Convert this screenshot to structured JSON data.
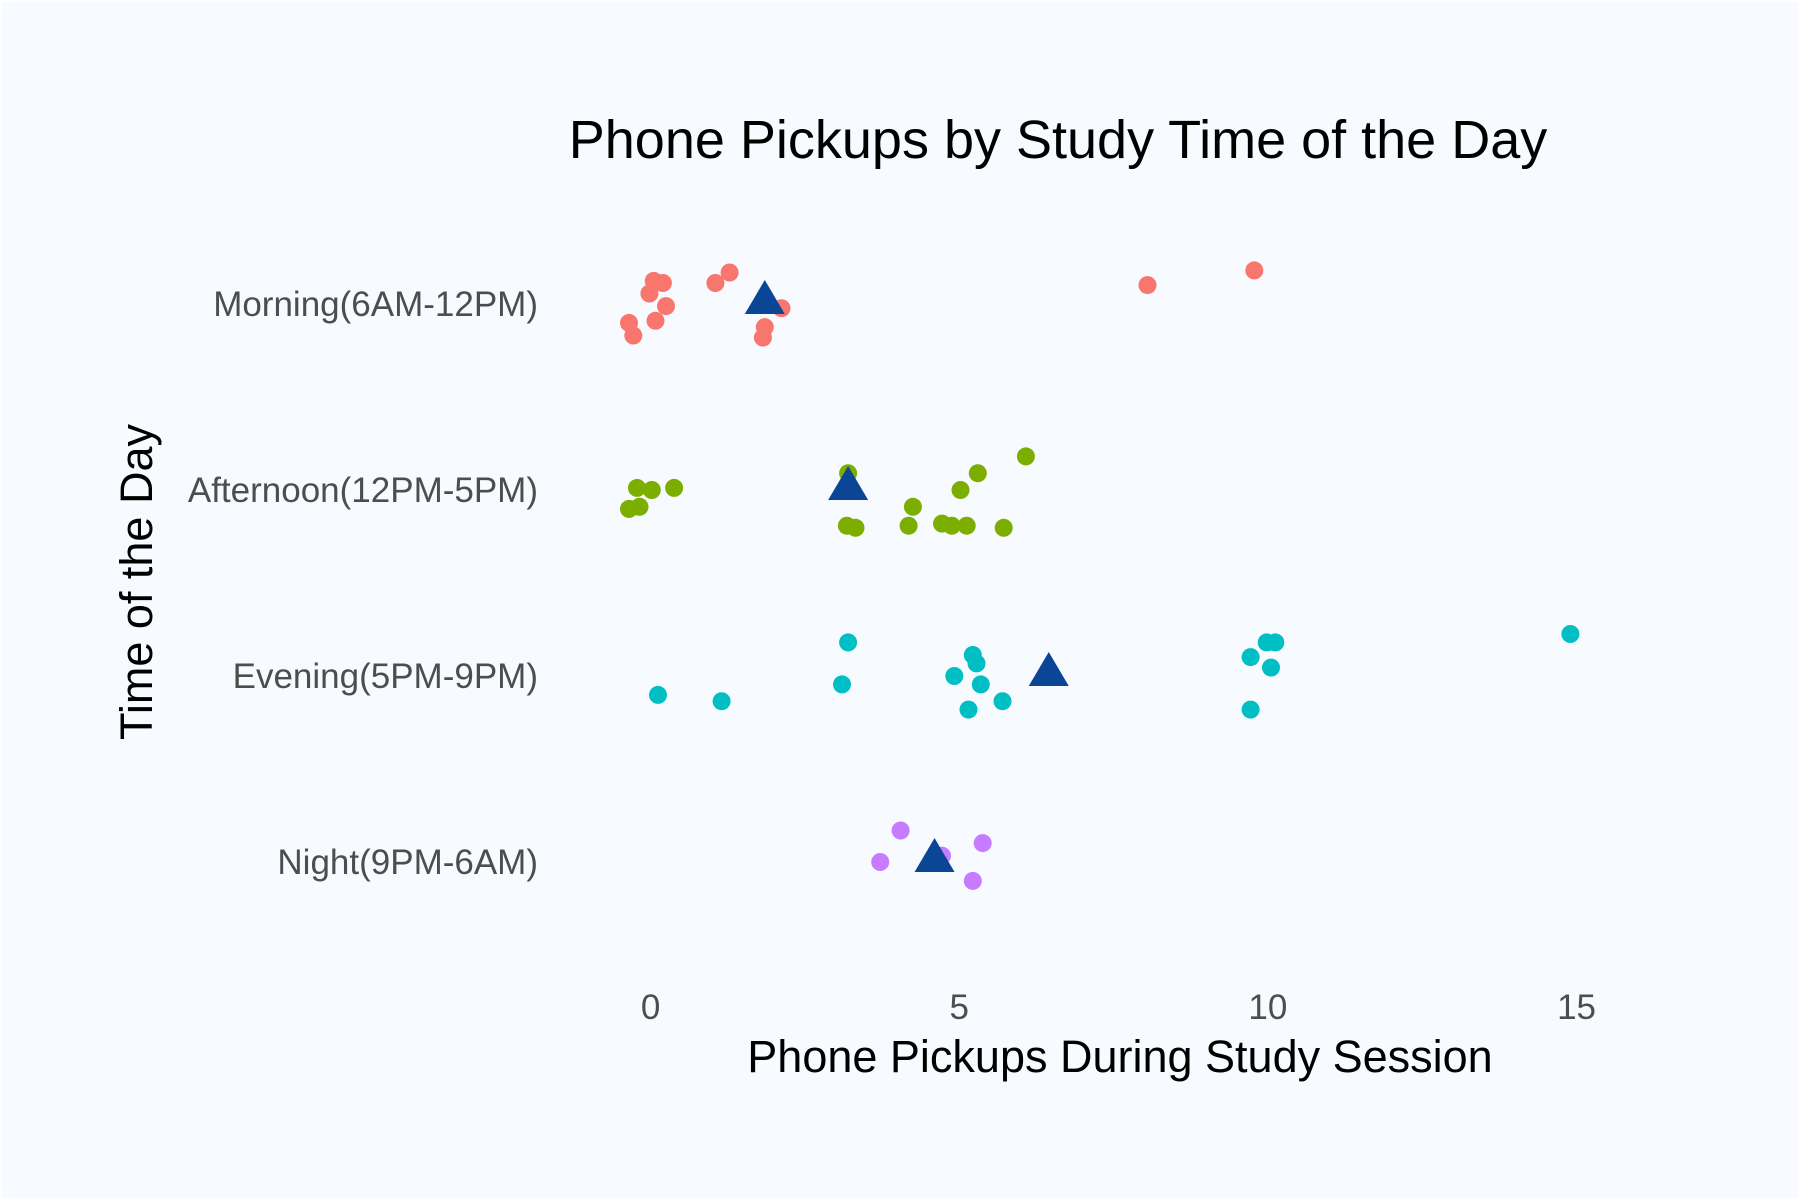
{
  "chart_data": {
    "type": "scatter",
    "title": "Phone Pickups by Study Time of the Day",
    "xlabel": "Phone Pickups During Study Session",
    "ylabel": "Time of the Day",
    "xlim": [
      -1.5,
      17
    ],
    "xticks": [
      0,
      5,
      10,
      15
    ],
    "grid": false,
    "legend": "none",
    "categories": [
      "Morning(6AM-12PM)",
      "Afternoon(12PM-5PM)",
      "Evening(5PM-9PM)",
      "Night(9PM-6AM)"
    ],
    "colors": {
      "background": "#f7fafe",
      "panel_border": "#ffffff",
      "mean_marker": "#0b4596"
    },
    "series": [
      {
        "category": "Morning(6AM-12PM)",
        "color": "#f8766d",
        "points": [
          {
            "x": 0.05,
            "jitter": 0.11
          },
          {
            "x": 0.2,
            "jitter": 0.1
          },
          {
            "x": -0.02,
            "jitter": 0.05
          },
          {
            "x": 0.25,
            "jitter": -0.01
          },
          {
            "x": -0.35,
            "jitter": -0.09
          },
          {
            "x": 0.08,
            "jitter": -0.08
          },
          {
            "x": -0.28,
            "jitter": -0.15
          },
          {
            "x": 1.05,
            "jitter": 0.1
          },
          {
            "x": 1.28,
            "jitter": 0.15
          },
          {
            "x": 1.85,
            "jitter": -0.11
          },
          {
            "x": 1.82,
            "jitter": -0.16
          },
          {
            "x": 2.12,
            "jitter": -0.02
          },
          {
            "x": 8.05,
            "jitter": 0.09
          },
          {
            "x": 9.78,
            "jitter": 0.16
          }
        ],
        "mean": 1.85
      },
      {
        "category": "Afternoon(12PM-5PM)",
        "color": "#7cae00",
        "points": [
          {
            "x": -0.22,
            "jitter": 0.01
          },
          {
            "x": 0.02,
            "jitter": 0.0
          },
          {
            "x": 0.38,
            "jitter": 0.01
          },
          {
            "x": -0.35,
            "jitter": -0.09
          },
          {
            "x": -0.18,
            "jitter": -0.08
          },
          {
            "x": 3.18,
            "jitter": -0.17
          },
          {
            "x": 3.32,
            "jitter": -0.18
          },
          {
            "x": 3.2,
            "jitter": 0.08
          },
          {
            "x": 4.25,
            "jitter": -0.08
          },
          {
            "x": 4.18,
            "jitter": -0.17
          },
          {
            "x": 4.72,
            "jitter": -0.16
          },
          {
            "x": 4.88,
            "jitter": -0.17
          },
          {
            "x": 5.02,
            "jitter": 0.0
          },
          {
            "x": 5.3,
            "jitter": 0.08
          },
          {
            "x": 5.12,
            "jitter": -0.17
          },
          {
            "x": 5.72,
            "jitter": -0.18
          },
          {
            "x": 6.08,
            "jitter": 0.16
          }
        ],
        "mean": 3.2
      },
      {
        "category": "Evening(5PM-9PM)",
        "color": "#00bfc4",
        "points": [
          {
            "x": 0.12,
            "jitter": -0.09
          },
          {
            "x": 1.15,
            "jitter": -0.12
          },
          {
            "x": 3.1,
            "jitter": -0.04
          },
          {
            "x": 3.2,
            "jitter": 0.16
          },
          {
            "x": 4.92,
            "jitter": 0.0
          },
          {
            "x": 5.22,
            "jitter": 0.1
          },
          {
            "x": 5.28,
            "jitter": 0.06
          },
          {
            "x": 5.35,
            "jitter": -0.04
          },
          {
            "x": 5.15,
            "jitter": -0.16
          },
          {
            "x": 5.7,
            "jitter": -0.12
          },
          {
            "x": 9.72,
            "jitter": 0.09
          },
          {
            "x": 9.98,
            "jitter": 0.16
          },
          {
            "x": 10.12,
            "jitter": 0.16
          },
          {
            "x": 10.05,
            "jitter": 0.04
          },
          {
            "x": 9.72,
            "jitter": -0.16
          },
          {
            "x": 14.9,
            "jitter": 0.2
          }
        ],
        "mean": 6.45
      },
      {
        "category": "Night(9PM-6AM)",
        "color": "#c77cff",
        "points": [
          {
            "x": 4.05,
            "jitter": 0.15
          },
          {
            "x": 3.72,
            "jitter": 0.0
          },
          {
            "x": 4.72,
            "jitter": 0.03
          },
          {
            "x": 5.38,
            "jitter": 0.09
          },
          {
            "x": 5.22,
            "jitter": -0.09
          }
        ],
        "mean": 4.6
      }
    ]
  }
}
